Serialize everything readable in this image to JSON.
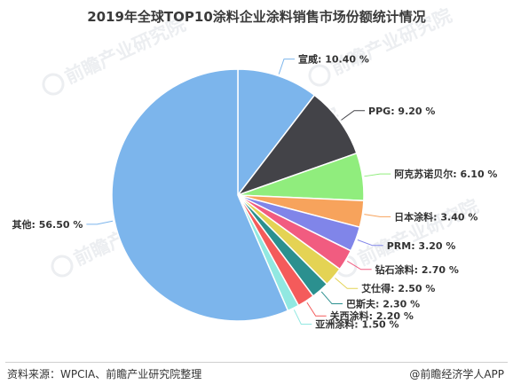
{
  "title": "2019年全球TOP10涂料企业涂料销售市场份额统计情况",
  "source": "资料来源：WPCIA、前瞻产业研究院整理",
  "brand": "@前瞻经济学人APP",
  "watermark": "前瞻产业研究院",
  "chart_data": {
    "type": "pie",
    "unit": "%",
    "slices": [
      {
        "label": "宣威",
        "value": 10.4,
        "display": "宣威: 10.40 %",
        "color": "#7cb5ec"
      },
      {
        "label": "PPG",
        "value": 9.2,
        "display": "PPG: 9.20 %",
        "color": "#434348"
      },
      {
        "label": "阿克苏诺贝尔",
        "value": 6.1,
        "display": "阿克苏诺贝尔: 6.10 %",
        "color": "#90ed7d"
      },
      {
        "label": "日本涂料",
        "value": 3.4,
        "display": "日本涂料: 3.40 %",
        "color": "#f7a35c"
      },
      {
        "label": "PRM",
        "value": 3.2,
        "display": "PRM: 3.20 %",
        "color": "#8085e9"
      },
      {
        "label": "钻石涂料",
        "value": 2.7,
        "display": "钻石涂料: 2.70 %",
        "color": "#f15c80"
      },
      {
        "label": "艾仕得",
        "value": 2.5,
        "display": "艾仕得: 2.50 %",
        "color": "#e4d354"
      },
      {
        "label": "巴斯夫",
        "value": 2.3,
        "display": "巴斯夫: 2.30 %",
        "color": "#2b908f"
      },
      {
        "label": "关西涂料",
        "value": 2.2,
        "display": "关西涂料: 2.20 %",
        "color": "#f45b5b"
      },
      {
        "label": "亚洲涂料",
        "value": 1.5,
        "display": "亚洲涂料: 1.50 %",
        "color": "#91e8e1"
      },
      {
        "label": "其他",
        "value": 56.5,
        "display": "其他: 56.50 %",
        "color": "#7cb5ec"
      }
    ]
  }
}
